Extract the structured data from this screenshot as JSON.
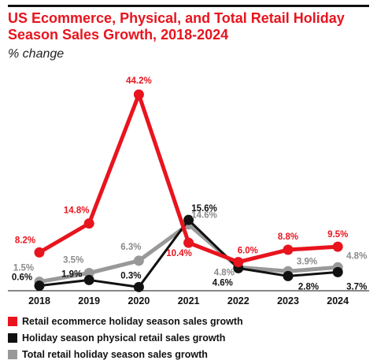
{
  "chart_data": {
    "type": "line",
    "title": "US Ecommerce, Physical, and Total Retail Holiday Season Sales Growth, 2018-2024",
    "subtitle": "% change",
    "xlabel": "",
    "ylabel": "",
    "categories": [
      "2018",
      "2019",
      "2020",
      "2021",
      "2022",
      "2023",
      "2024"
    ],
    "ylim": [
      0,
      44.2
    ],
    "grid": false,
    "legend_position": "bottom",
    "series": [
      {
        "name": "Retail ecommerce holiday season sales growth",
        "color": "#e8141e",
        "values": [
          8.2,
          14.8,
          44.2,
          10.4,
          6.0,
          8.8,
          9.5
        ],
        "labels": [
          "8.2%",
          "14.8%",
          "44.2%",
          "10.4%",
          "6.0%",
          "8.8%",
          "9.5%"
        ]
      },
      {
        "name": "Holiday season physical retail sales growth",
        "color": "#111111",
        "values": [
          0.6,
          1.9,
          0.3,
          15.6,
          4.6,
          2.8,
          3.7
        ],
        "labels": [
          "0.6%",
          "1.9%",
          "0.3%",
          "15.6%",
          "4.6%",
          "2.8%",
          "3.7%"
        ]
      },
      {
        "name": "Total retail holiday season sales growth",
        "color": "#999999",
        "values": [
          1.5,
          3.5,
          6.3,
          14.6,
          4.8,
          3.9,
          4.8
        ],
        "labels": [
          "1.5%",
          "3.5%",
          "6.3%",
          "14.6%",
          "4.8%",
          "3.9%",
          "4.8%"
        ]
      }
    ]
  }
}
